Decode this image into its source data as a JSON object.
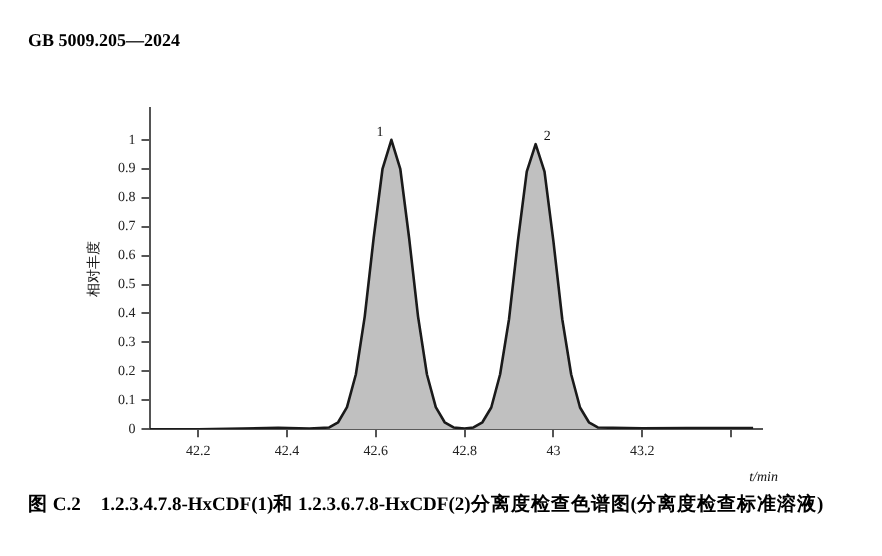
{
  "chart_data": {
    "type": "area",
    "title": "图 C.2　1.2.3.4.7.8-HxCDF(1)和 1.2.3.6.7.8-HxCDF(2)分离度检查色谱图(分离度检查标准溶液)",
    "annotations": [
      "GB 5009.205—2024",
      {
        "text": "1",
        "x": 42.635,
        "y": 1
      },
      {
        "text": "2",
        "x": 42.96,
        "y": 0.985
      }
    ],
    "xlabel": "t/min",
    "ylabel": "相对丰度",
    "x": [
      42.09,
      42.2,
      42.3,
      42.38,
      42.45,
      42.495,
      42.515,
      42.535,
      42.555,
      42.575,
      42.595,
      42.615,
      42.635,
      42.655,
      42.675,
      42.695,
      42.715,
      42.735,
      42.755,
      42.775,
      42.8,
      42.82,
      42.84,
      42.86,
      42.88,
      42.9,
      42.92,
      42.94,
      42.96,
      42.98,
      43.0,
      43.02,
      43.04,
      43.06,
      43.08,
      43.1,
      43.2,
      43.3,
      43.45
    ],
    "series": [
      {
        "color": "#c0c0c0",
        "values": [
          0,
          0,
          0.002,
          0.005,
          0.002,
          0.006,
          0.024,
          0.076,
          0.19,
          0.39,
          0.66,
          0.9,
          1,
          0.9,
          0.66,
          0.39,
          0.19,
          0.076,
          0.024,
          0.006,
          0.002,
          0.006,
          0.024,
          0.075,
          0.19,
          0.38,
          0.65,
          0.89,
          0.985,
          0.89,
          0.65,
          0.38,
          0.19,
          0.075,
          0.024,
          0.006,
          0.003,
          0.004,
          0.004
        ]
      }
    ],
    "xlim": [
      42.09,
      43.47
    ],
    "xticks": [
      42.2,
      42.4,
      42.6,
      42.8,
      43,
      43.2,
      {
        "value": 43.4,
        "label": null
      }
    ],
    "ylim": [
      0,
      1.11
    ],
    "yticks": [
      0,
      0.1,
      0.2,
      0.3,
      0.4,
      0.5,
      0.6,
      0.7,
      0.8,
      0.9,
      1
    ],
    "grid": false,
    "legend": false,
    "marker": "none",
    "line_style": "solid"
  }
}
